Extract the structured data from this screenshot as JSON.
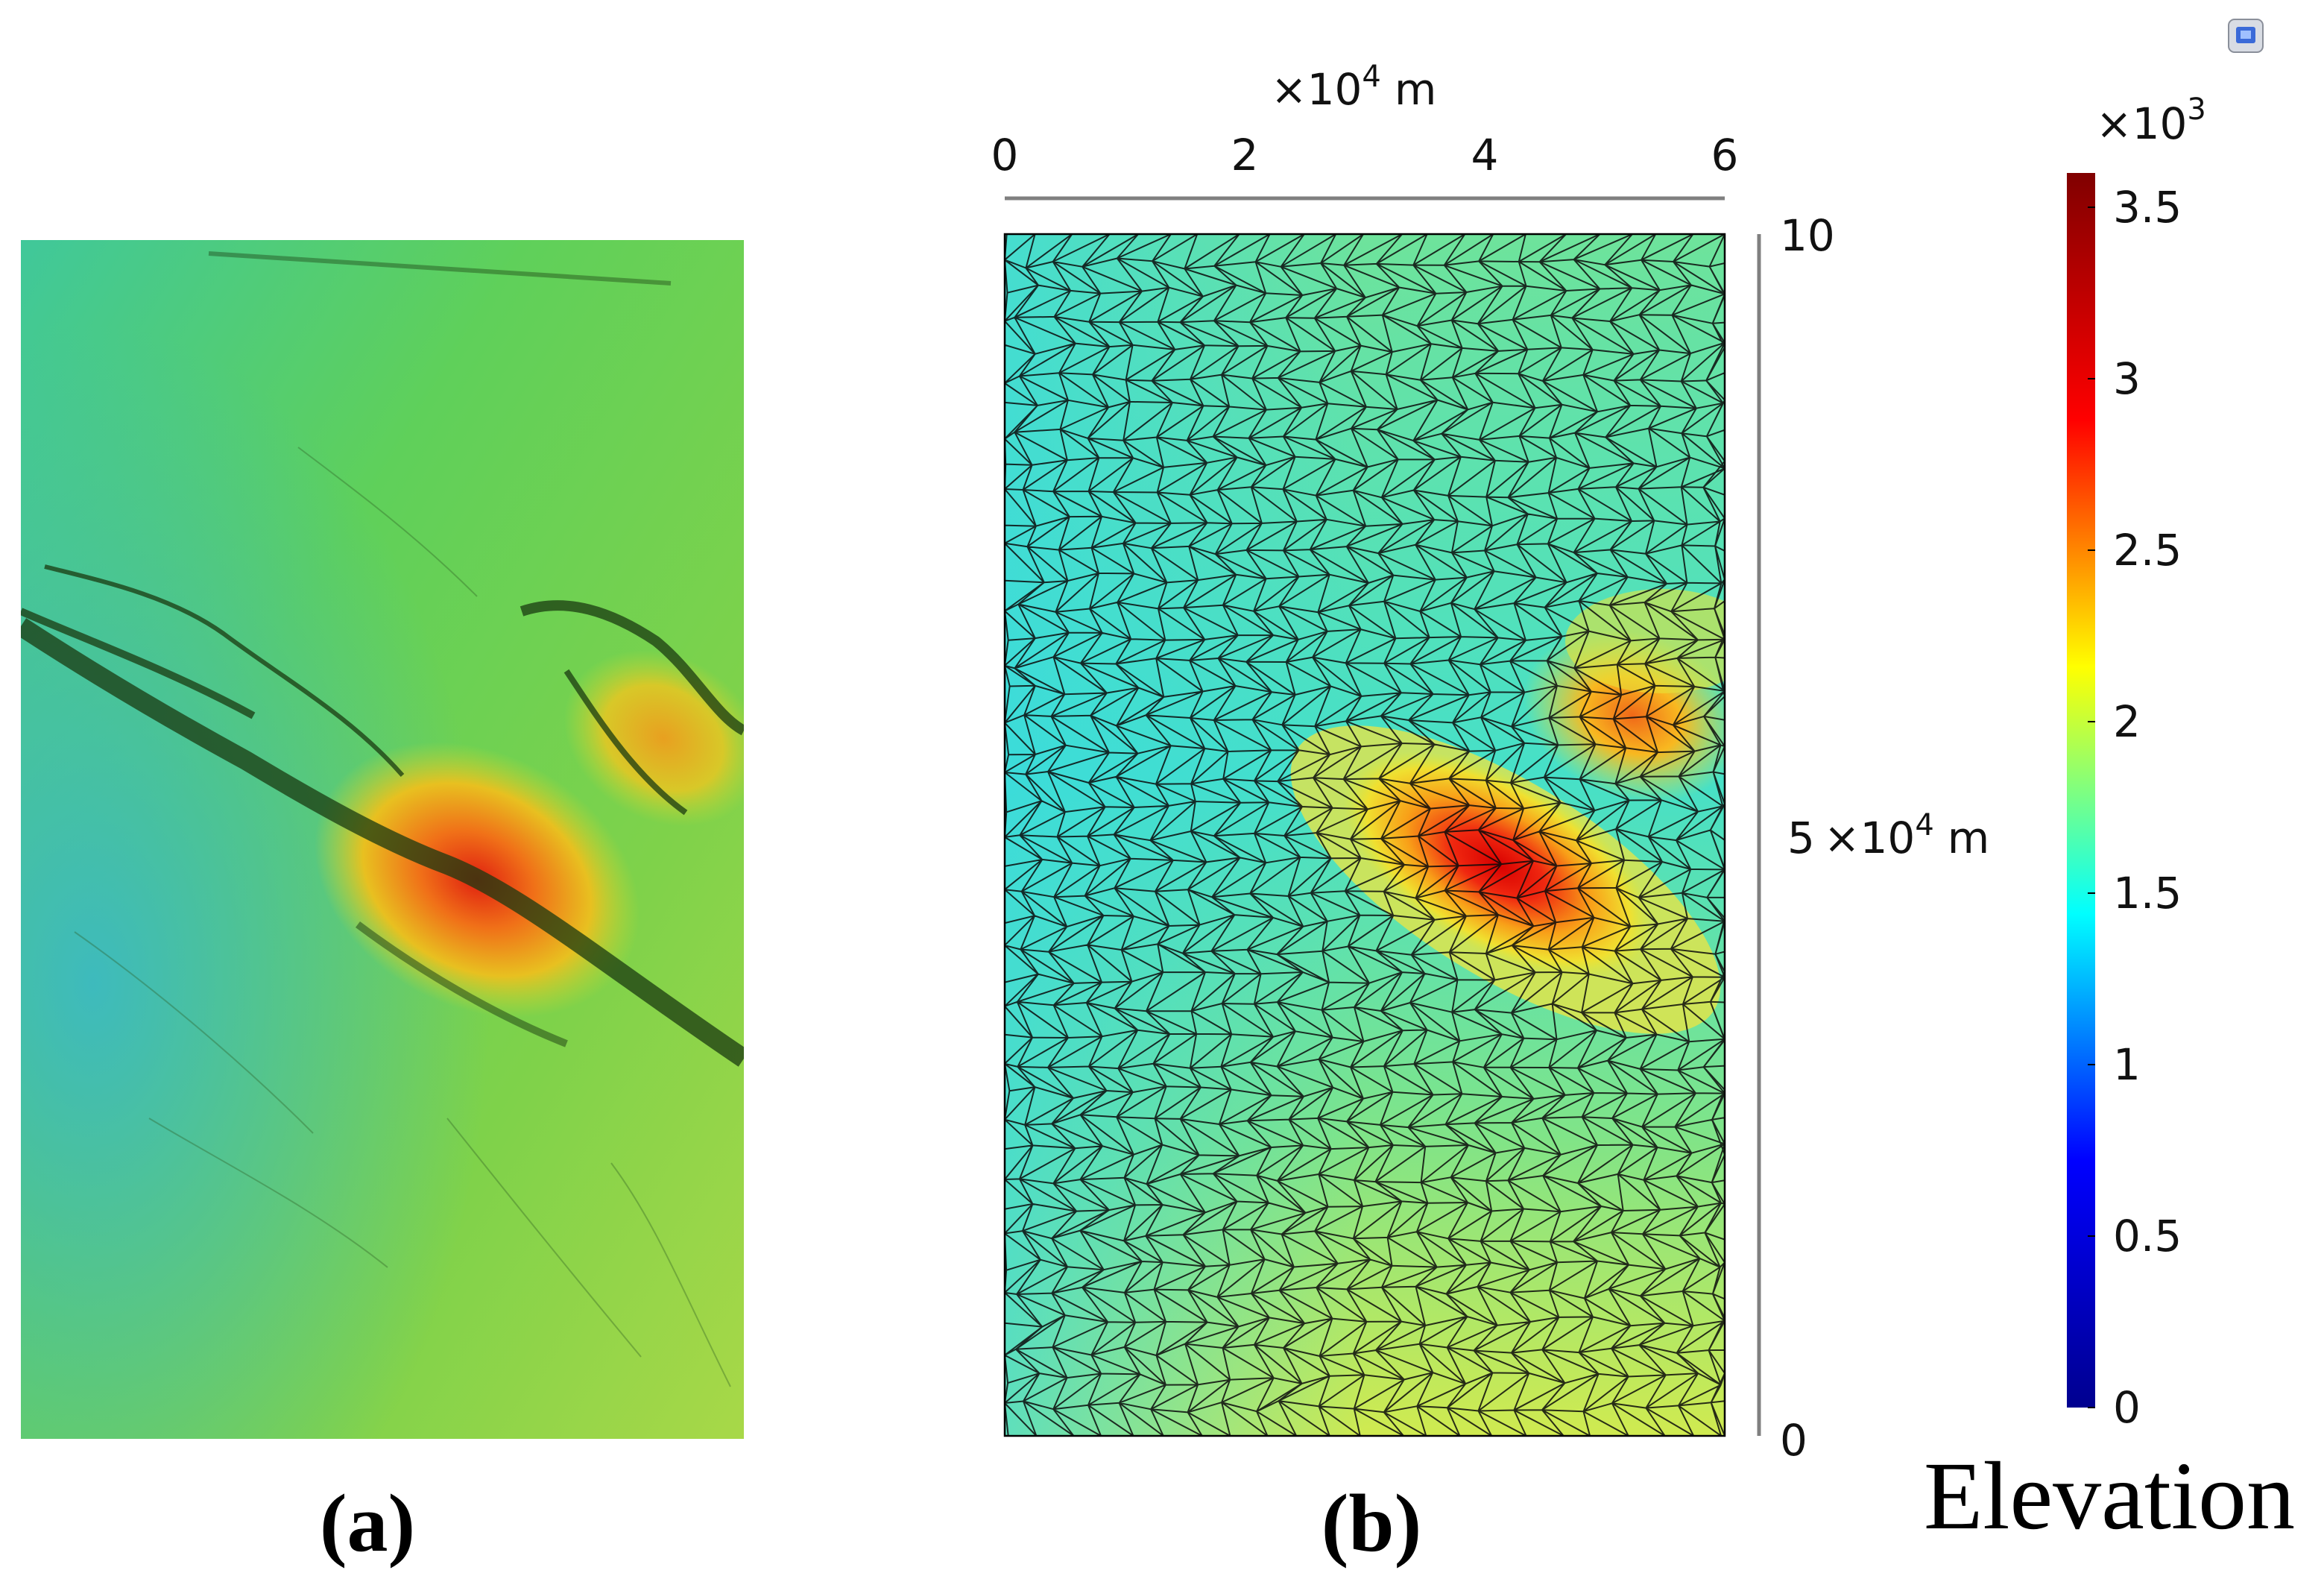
{
  "panel_a": {
    "label": "(a)",
    "image": "shaded-relief elevation map (DEM)"
  },
  "panel_b": {
    "label": "(b)",
    "image": "triangular finite-element mesh with elevation colour field",
    "x_axis": {
      "multiplier": "×10",
      "exponent": "4",
      "unit": "m",
      "ticks": [
        "0",
        "2",
        "4",
        "6"
      ]
    },
    "y_axis": {
      "ticks": [
        "0",
        "10"
      ],
      "mid_prefix": "5",
      "mid_multiplier": "×10",
      "mid_exponent": "4",
      "mid_unit": "m"
    }
  },
  "colorbar": {
    "multiplier": "×10",
    "exponent": "3",
    "ticks": [
      "3.5",
      "3",
      "2.5",
      "2",
      "1.5",
      "1",
      "0.5",
      "0"
    ],
    "min": 0,
    "max": 3.6,
    "colormap": [
      "#00008f",
      "#0000ff",
      "#00ffff",
      "#ffff00",
      "#ff0000",
      "#800000"
    ],
    "title": "Elevation"
  },
  "corner_icon": "view-cube-icon"
}
